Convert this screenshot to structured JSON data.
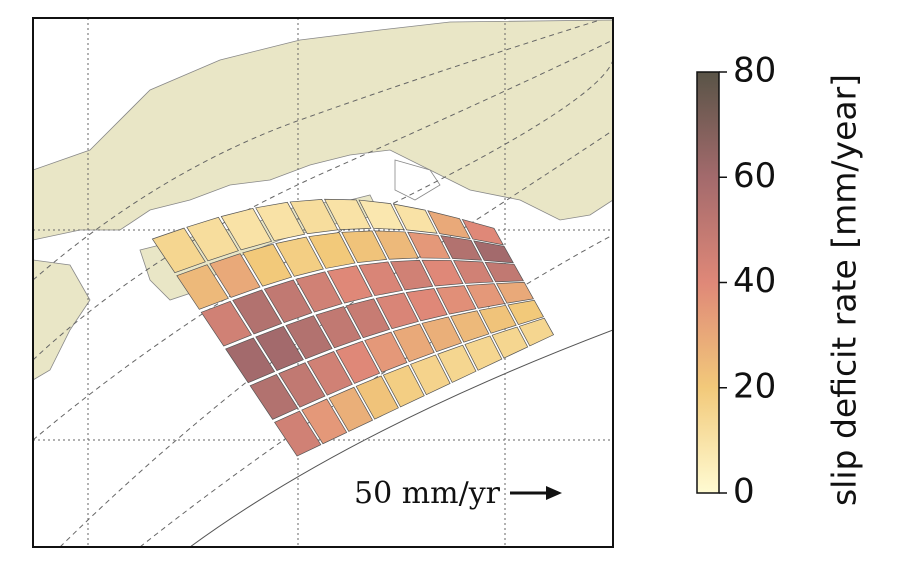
{
  "chart_data": {
    "type": "patch-map",
    "patches": [
      [
        15,
        12,
        10,
        10,
        12,
        10,
        8,
        10,
        30,
        40
      ],
      [
        25,
        30,
        20,
        18,
        20,
        22,
        25,
        35,
        55,
        60
      ],
      [
        45,
        55,
        50,
        45,
        40,
        42,
        45,
        40,
        45,
        50
      ],
      [
        60,
        60,
        55,
        50,
        48,
        42,
        40,
        38,
        35,
        30
      ],
      [
        55,
        50,
        45,
        40,
        35,
        30,
        28,
        25,
        22,
        20
      ],
      [
        45,
        35,
        28,
        22,
        18,
        16,
        15,
        15,
        15,
        15
      ]
    ],
    "ylabel": "slip deficit rate [mm/year]",
    "ylim": [
      0,
      80
    ],
    "yticks": [
      0,
      20,
      40,
      60,
      80
    ],
    "scale_label": "50 mm/yr"
  }
}
